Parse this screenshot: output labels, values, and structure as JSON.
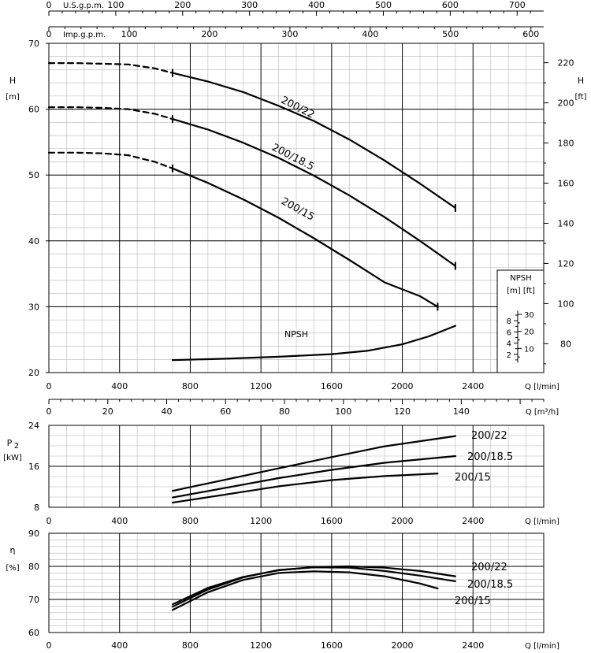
{
  "chart_data": [
    {
      "type": "line",
      "x_label": "Q [l/min]",
      "x_ticks": [
        0,
        400,
        800,
        1200,
        1600,
        2000,
        2400
      ],
      "x_range": [
        0,
        2800
      ],
      "y_left_label": "H",
      "y_left_unit": "[m]",
      "y_left_ticks": [
        20,
        30,
        40,
        50,
        60,
        70
      ],
      "y_left_range": [
        20,
        70
      ],
      "y_right_label": "H",
      "y_right_unit": "[ft]",
      "y_right_ticks": [
        80,
        100,
        120,
        140,
        160,
        180,
        200,
        220
      ],
      "top_axis_1": {
        "label": "U.S.g.p.m.",
        "ticks": [
          0,
          100,
          200,
          300,
          400,
          500,
          600,
          700
        ],
        "units_per_gpm_lpm": 3.785
      },
      "top_axis_2": {
        "label": "Imp.g.p.m.",
        "ticks": [
          0,
          100,
          200,
          300,
          400,
          500,
          600
        ],
        "units_per_gpm_lpm": 4.546
      },
      "bottom_axis_2": {
        "label": "Q [m³/h]",
        "ticks": [
          0,
          20,
          40,
          60,
          80,
          100,
          120,
          140
        ]
      },
      "series": [
        {
          "name": "200/22",
          "label_text": "200/22",
          "dashed_x": [
            0,
            150,
            300,
            450,
            600,
            700
          ],
          "dashed_y": [
            67.0,
            67.0,
            66.9,
            66.8,
            66.2,
            65.5
          ],
          "x": [
            700,
            900,
            1100,
            1300,
            1500,
            1700,
            1900,
            2100,
            2300
          ],
          "y": [
            65.5,
            64.2,
            62.6,
            60.5,
            58.2,
            55.4,
            52.2,
            48.7,
            45.0
          ]
        },
        {
          "name": "200/18.5",
          "label_text": "200/18.5",
          "dashed_x": [
            0,
            150,
            300,
            450,
            600,
            700
          ],
          "dashed_y": [
            60.3,
            60.3,
            60.2,
            60.0,
            59.3,
            58.5
          ],
          "x": [
            700,
            900,
            1100,
            1300,
            1500,
            1700,
            1900,
            2100,
            2300
          ],
          "y": [
            58.5,
            56.9,
            54.9,
            52.6,
            49.9,
            46.9,
            43.6,
            40.0,
            36.2
          ]
        },
        {
          "name": "200/15",
          "label_text": "200/15",
          "dashed_x": [
            0,
            150,
            300,
            450,
            600,
            700
          ],
          "dashed_y": [
            53.4,
            53.4,
            53.3,
            53.0,
            52.0,
            51.0
          ],
          "x": [
            700,
            900,
            1100,
            1300,
            1500,
            1700,
            1900,
            2100,
            2200
          ],
          "y": [
            51.0,
            48.8,
            46.3,
            43.5,
            40.4,
            37.1,
            33.7,
            31.6,
            30.0
          ]
        },
        {
          "name": "NPSH",
          "label_text": "NPSH",
          "x": [
            700,
            1000,
            1300,
            1600,
            1800,
            2000,
            2150,
            2300
          ],
          "y": [
            21.9,
            22.1,
            22.4,
            22.8,
            23.3,
            24.3,
            25.5,
            27.1
          ]
        }
      ],
      "npsh_inset": {
        "title": "NPSH",
        "units": "[m]  [ft]",
        "m_ticks": [
          2,
          4,
          6,
          8
        ],
        "ft_ticks": [
          10,
          20,
          30
        ]
      }
    },
    {
      "type": "line",
      "x_label": "Q [l/min]",
      "x_ticks": [
        0,
        400,
        800,
        1200,
        1600,
        2000,
        2400
      ],
      "y_label": "P",
      "y_label_sub": "2",
      "y_unit": "[kW]",
      "y_ticks": [
        8,
        16,
        24
      ],
      "y_range": [
        8,
        24
      ],
      "series": [
        {
          "name": "200/22",
          "label_text": "200/22",
          "x": [
            700,
            1000,
            1300,
            1600,
            1900,
            2300
          ],
          "y": [
            11.2,
            13.4,
            15.6,
            17.8,
            19.9,
            21.9
          ]
        },
        {
          "name": "200/18.5",
          "label_text": "200/18.5",
          "x": [
            700,
            1000,
            1300,
            1600,
            1900,
            2300
          ],
          "y": [
            9.9,
            11.8,
            13.7,
            15.3,
            16.7,
            18.0
          ]
        },
        {
          "name": "200/15",
          "label_text": "200/15",
          "x": [
            700,
            1000,
            1300,
            1600,
            1900,
            2200
          ],
          "y": [
            8.9,
            10.5,
            12.1,
            13.3,
            14.1,
            14.6
          ]
        }
      ]
    },
    {
      "type": "line",
      "x_label": "Q [l/min]",
      "x_ticks": [
        0,
        400,
        800,
        1200,
        1600,
        2000,
        2400
      ],
      "y_label": "η",
      "y_unit": "[%]",
      "y_ticks": [
        60,
        70,
        80,
        90
      ],
      "y_range": [
        60,
        90
      ],
      "series": [
        {
          "name": "200/22",
          "label_text": "200/22",
          "x": [
            700,
            900,
            1100,
            1300,
            1500,
            1700,
            1900,
            2100,
            2300
          ],
          "y": [
            68.5,
            73.5,
            76.8,
            78.8,
            79.8,
            80.0,
            79.6,
            78.6,
            77.0
          ]
        },
        {
          "name": "200/18.5",
          "label_text": "200/18.5",
          "x": [
            700,
            900,
            1100,
            1300,
            1500,
            1700,
            1900,
            2100,
            2300
          ],
          "y": [
            67.8,
            73.0,
            76.7,
            78.9,
            79.7,
            79.6,
            78.6,
            77.2,
            75.5
          ]
        },
        {
          "name": "200/15",
          "label_text": "200/15",
          "x": [
            700,
            900,
            1100,
            1300,
            1500,
            1700,
            1900,
            2100,
            2200
          ],
          "y": [
            66.8,
            72.2,
            75.9,
            78.0,
            78.5,
            78.2,
            77.0,
            74.8,
            73.3
          ]
        }
      ]
    }
  ]
}
